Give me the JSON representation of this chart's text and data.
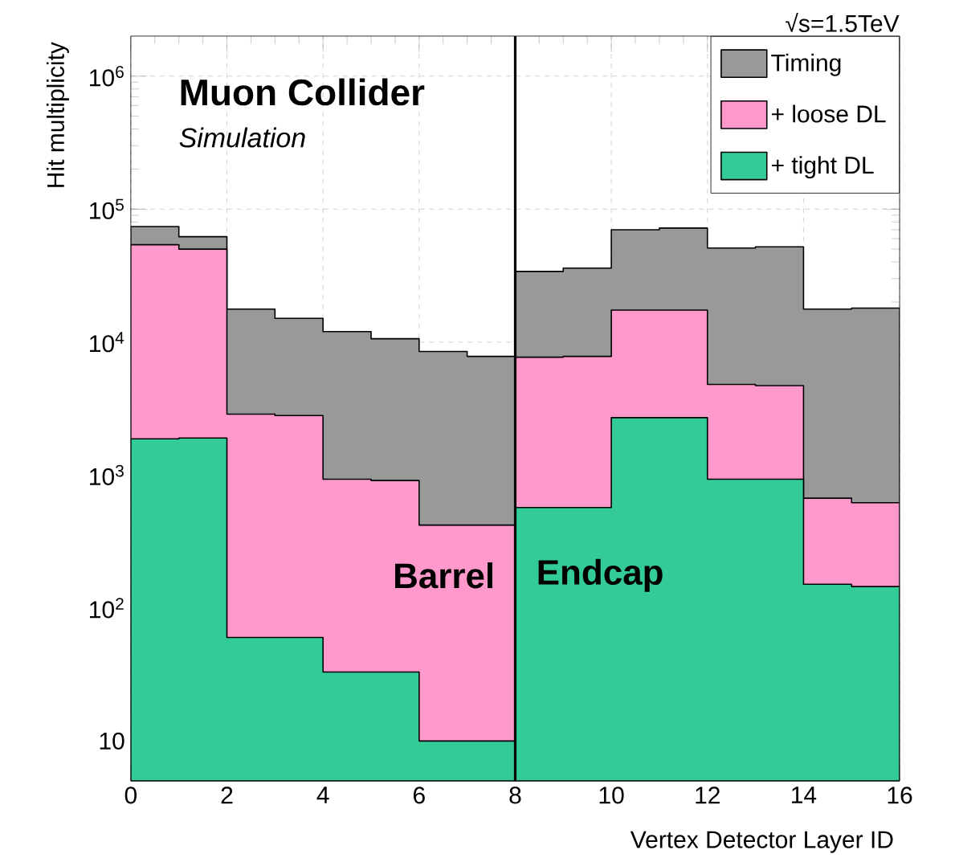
{
  "chart_data": {
    "type": "histogram",
    "xlabel": "Vertex Detector Layer ID",
    "ylabel": "Hit multiplicity",
    "bins": [
      0,
      1,
      2,
      3,
      4,
      5,
      6,
      7,
      8,
      9,
      10,
      11,
      12,
      13,
      14,
      15,
      16
    ],
    "series": [
      {
        "name": "Timing",
        "color": "#999999",
        "values": [
          74000,
          62000,
          17700,
          15100,
          12000,
          10600,
          8500,
          7800,
          34000,
          36000,
          70000,
          72000,
          51000,
          52000,
          17700,
          18000
        ]
      },
      {
        "name": "+ loose DL",
        "color": "#ff99cc",
        "values": [
          54000,
          50000,
          2870,
          2800,
          930,
          910,
          420,
          420,
          7700,
          7800,
          17400,
          17400,
          4800,
          4700,
          670,
          620
        ]
      },
      {
        "name": "+ tight DL",
        "color": "#33cc99",
        "values": [
          1870,
          1900,
          60,
          60,
          33,
          33,
          10,
          10,
          570,
          570,
          2700,
          2700,
          930,
          930,
          151,
          145
        ]
      }
    ],
    "xlim": [
      0,
      16
    ],
    "ylim": [
      5,
      2000000
    ],
    "xticks": [
      0,
      2,
      4,
      6,
      8,
      10,
      12,
      14,
      16
    ],
    "yticks": [
      10,
      {
        "value": 100,
        "label": "10$^{2}$"
      },
      {
        "value": 1000,
        "label": "10$^{3}$"
      },
      {
        "value": 10000,
        "label": "10$^{4}$"
      },
      {
        "value": 100000,
        "label": "10$^{5}$"
      },
      {
        "value": 1000000,
        "label": "10$^{6}$"
      }
    ],
    "log": "y",
    "grid": true,
    "legend": "top right",
    "ref_lines": [
      {
        "axis": "x",
        "value": 8,
        "color": "#000000"
      }
    ],
    "annotations": [
      "Muon Collider",
      "Simulation",
      "Barrel",
      "Endcap",
      "√s=1.5TeV"
    ]
  }
}
